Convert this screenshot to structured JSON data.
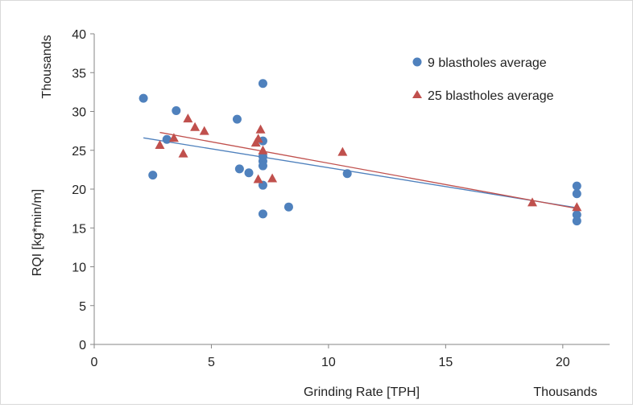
{
  "chart_data": {
    "type": "scatter",
    "title": "",
    "xlabel": "Grinding Rate [TPH]",
    "ylabel": "RQI [kg*min/m]",
    "x_multiplier_label": "Thousands",
    "y_multiplier_label": "Thousands",
    "xlim": [
      0,
      22
    ],
    "ylim": [
      0,
      40
    ],
    "xticks": [
      0,
      5,
      10,
      15,
      20
    ],
    "xtick_labels": [
      "0",
      "5",
      "10",
      "15",
      "20"
    ],
    "yticks": [
      0,
      5,
      10,
      15,
      20,
      25,
      30,
      35,
      40
    ],
    "ytick_labels": [
      "0",
      "5",
      "10",
      "15",
      "20",
      "25",
      "30",
      "35",
      "40"
    ],
    "grid": false,
    "legend_position": "top-right",
    "series": [
      {
        "name": "9 blastholes average",
        "marker": "circle",
        "color": "#4f81bd",
        "points": [
          [
            2.1,
            31.7
          ],
          [
            2.5,
            21.8
          ],
          [
            3.1,
            26.4
          ],
          [
            3.5,
            30.1
          ],
          [
            6.1,
            29.0
          ],
          [
            6.2,
            22.6
          ],
          [
            6.6,
            22.1
          ],
          [
            7.2,
            33.6
          ],
          [
            7.2,
            26.2
          ],
          [
            7.2,
            24.2
          ],
          [
            7.2,
            23.6
          ],
          [
            7.2,
            23.0
          ],
          [
            7.2,
            20.5
          ],
          [
            7.2,
            16.8
          ],
          [
            8.3,
            17.7
          ],
          [
            10.8,
            22.0
          ],
          [
            20.6,
            20.4
          ],
          [
            20.6,
            19.4
          ],
          [
            20.6,
            16.7
          ],
          [
            20.6,
            15.9
          ]
        ],
        "trendline": {
          "x": [
            2.1,
            20.6
          ],
          "y": [
            26.6,
            17.6
          ],
          "color": "#4f81bd"
        }
      },
      {
        "name": "25 blastholes average",
        "marker": "triangle",
        "color": "#c0504d",
        "points": [
          [
            2.8,
            25.7
          ],
          [
            3.4,
            26.6
          ],
          [
            3.8,
            24.6
          ],
          [
            4.0,
            29.1
          ],
          [
            4.3,
            28.0
          ],
          [
            4.7,
            27.5
          ],
          [
            6.9,
            26.0
          ],
          [
            7.0,
            26.5
          ],
          [
            7.0,
            21.3
          ],
          [
            7.1,
            27.7
          ],
          [
            7.2,
            25.0
          ],
          [
            7.6,
            21.4
          ],
          [
            10.6,
            24.8
          ],
          [
            18.7,
            18.3
          ],
          [
            20.6,
            17.7
          ]
        ],
        "trendline": {
          "x": [
            2.8,
            20.6
          ],
          "y": [
            27.3,
            17.5
          ],
          "color": "#c0504d"
        }
      }
    ]
  }
}
